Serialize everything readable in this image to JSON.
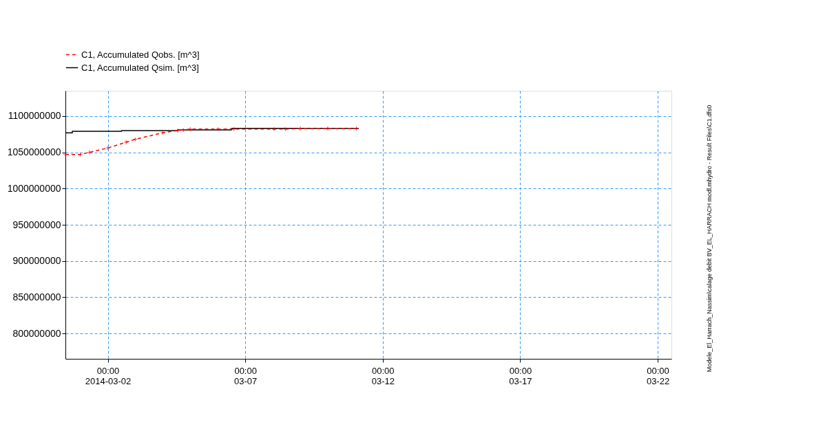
{
  "chart_data": {
    "type": "line",
    "xlim": [
      "2014-02-28T11:00",
      "2014-03-22T12:00"
    ],
    "xticks": [
      {
        "value": "2014-03-02T00:00",
        "label": "00:00\n2014-03-02"
      },
      {
        "value": "2014-03-07T00:00",
        "label": "00:00\n03-07"
      },
      {
        "value": "2014-03-12T00:00",
        "label": "00:00\n03-12"
      },
      {
        "value": "2014-03-17T00:00",
        "label": "00:00\n03-17"
      },
      {
        "value": "2014-03-22T00:00",
        "label": "00:00\n03-22"
      }
    ],
    "ylim": [
      765000000,
      1135000000
    ],
    "yticks": [
      {
        "value": 800000000,
        "label": "800000000"
      },
      {
        "value": 850000000,
        "label": "850000000"
      },
      {
        "value": 900000000,
        "label": "900000000"
      },
      {
        "value": 950000000,
        "label": "950000000"
      },
      {
        "value": 1000000000,
        "label": "1000000000"
      },
      {
        "value": 1050000000,
        "label": "1050000000"
      },
      {
        "value": 1100000000,
        "label": "1100000000"
      }
    ],
    "grid": true,
    "legend": "top left",
    "annotations": [
      "Modele_El_Harrach_Nassim\\calage debit BV_EL_HARRACH modl.mhydro - Result Files\\C1.dfs0"
    ],
    "series": [
      {
        "name": "C1, Accumulated Qobs. [m^3]",
        "color": "#ff0000",
        "type": "line",
        "line_style": "dashed",
        "marker": "cross",
        "x": [
          "2014-02-28T11:00",
          "2014-03-01T00:00",
          "2014-03-01T08:00",
          "2014-03-02T00:00",
          "2014-03-02T16:00",
          "2014-03-03T00:00",
          "2014-03-04T00:00",
          "2014-03-04T13:00",
          "2014-03-04T18:00",
          "2014-03-05T00:00",
          "2014-03-06T00:00",
          "2014-03-06T14:00",
          "2014-03-08T01:00",
          "2014-03-08T11:00",
          "2014-03-09T00:00",
          "2014-03-10T00:00",
          "2014-03-11T01:00"
        ],
        "values": [
          1047000000,
          1047000000,
          1050000000,
          1056000000,
          1064000000,
          1068000000,
          1077000000,
          1080000000,
          1081000000,
          1082000000,
          1082000000,
          1082000000,
          1082000000,
          1082000000,
          1083000000,
          1083000000,
          1083000000
        ]
      },
      {
        "name": "C1, Accumulated Qsim. [m^3]",
        "color": "#000000",
        "type": "step",
        "line_style": "solid",
        "marker": "none",
        "x": [
          "2014-02-28T11:00",
          "2014-02-28T17:00",
          "2014-03-02T12:00",
          "2014-03-04T13:00",
          "2014-03-06T12:00",
          "2014-03-11T03:00"
        ],
        "values": [
          1077000000,
          1079000000,
          1080000000,
          1081000000,
          1083000000,
          1083000000
        ]
      }
    ]
  }
}
